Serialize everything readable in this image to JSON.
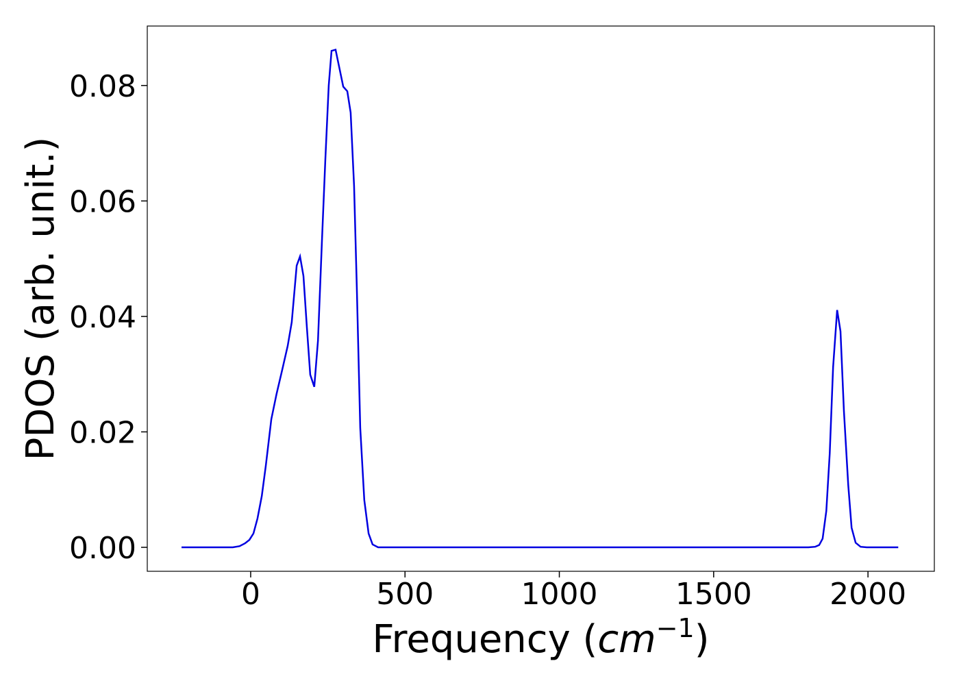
{
  "chart_data": {
    "type": "line",
    "xlabel": [
      "Frequency (",
      "cm",
      "−1",
      ")"
    ],
    "ylabel": "PDOS (arb. unit.)",
    "xlim": [
      -335,
      2215
    ],
    "ylim": [
      -0.00415,
      0.0903
    ],
    "xticks": [
      0,
      500,
      1000,
      1500,
      2000
    ],
    "yticks": [
      {
        "value": 0,
        "label": "0.00"
      },
      0.02,
      0.04,
      0.06,
      0.08
    ],
    "grid": false,
    "series": [
      {
        "name": "PDOS",
        "color": "#0000e0",
        "x": [
          -224,
          -58,
          -36,
          -18,
          -4,
          9,
          22,
          36,
          49,
          67,
          84,
          102,
          120,
          133,
          149,
          160,
          171,
          182,
          193,
          206,
          218,
          231,
          242,
          253,
          262,
          275,
          289,
          300,
          313,
          324,
          335,
          344,
          355,
          368,
          382,
          395,
          413,
          1807,
          1829,
          1842,
          1853,
          1865,
          1876,
          1887,
          1900,
          1911,
          1922,
          1936,
          1947,
          1960,
          1976,
          1996,
          2098
        ],
        "values": [
          0,
          0,
          0.0002,
          0.0007,
          0.0013,
          0.0024,
          0.005,
          0.0089,
          0.0141,
          0.0222,
          0.0266,
          0.0307,
          0.0349,
          0.039,
          0.0488,
          0.0504,
          0.047,
          0.0381,
          0.0299,
          0.0278,
          0.0358,
          0.0531,
          0.0673,
          0.08,
          0.086,
          0.0862,
          0.0826,
          0.0798,
          0.079,
          0.0753,
          0.0626,
          0.045,
          0.0207,
          0.0082,
          0.0024,
          0.0005,
          0,
          0,
          0.0001,
          0.0004,
          0.0015,
          0.0063,
          0.0163,
          0.0312,
          0.0411,
          0.0374,
          0.0236,
          0.0108,
          0.0034,
          0.0008,
          0.0001,
          0,
          0
        ]
      }
    ]
  }
}
